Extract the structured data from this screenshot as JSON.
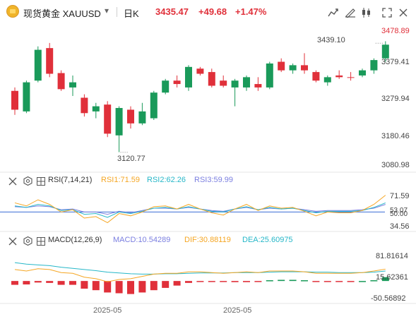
{
  "header": {
    "symbol_name": "现货黄金",
    "symbol_code": "XAUUSD",
    "period": "日K",
    "price": "3435.47",
    "change": "+49.68",
    "change_pct": "+1.47%"
  },
  "toolbar": {
    "icons": [
      "chart-type-icon",
      "drawing-tools-icon",
      "indicator-icon",
      "fullscreen-icon",
      "close-icon"
    ]
  },
  "price_axis": {
    "labels": [
      "3478.89",
      "3379.41",
      "3279.94",
      "3180.46",
      "3080.98"
    ],
    "highlight": "3478.89"
  },
  "annotations": {
    "high": "3439.10",
    "low": "3120.77"
  },
  "rsi": {
    "title": "RSI(7,14,21)",
    "rsi1": "RSI1:71.59",
    "rsi2": "RSI2:62.26",
    "rsi3": "RSI3:59.99",
    "axis": [
      "71.59",
      "53.07",
      "50.00",
      "34.56"
    ],
    "colors": {
      "rsi1": "#f5a623",
      "rsi2": "#26b7c8",
      "rsi3": "#7b7fe0"
    }
  },
  "macd": {
    "title": "MACD(12,26,9)",
    "macd": "MACD:10.54289",
    "dif": "DIF:30.88119",
    "dea": "DEA:25.60975",
    "axis": [
      "81.81614",
      "15.62361",
      "-50.56892"
    ],
    "colors": {
      "macd": "#7b7fe0",
      "dif": "#f5a623",
      "dea": "#26b7c8"
    }
  },
  "x_axis": [
    "2025-05",
    "2025-05"
  ],
  "colors": {
    "up": "#1a9a5a",
    "down": "#e0303a",
    "accent": "#3a6bd6"
  },
  "chart_data": {
    "type": "candlestick",
    "ylim": [
      3080.98,
      3478.89
    ],
    "candles": [
      {
        "o": 3300,
        "h": 3310,
        "l": 3230,
        "c": 3245
      },
      {
        "o": 3240,
        "h": 3330,
        "l": 3235,
        "c": 3325
      },
      {
        "o": 3330,
        "h": 3430,
        "l": 3325,
        "c": 3420
      },
      {
        "o": 3425,
        "h": 3440,
        "l": 3340,
        "c": 3350
      },
      {
        "o": 3352,
        "h": 3360,
        "l": 3300,
        "c": 3305
      },
      {
        "o": 3310,
        "h": 3345,
        "l": 3285,
        "c": 3325
      },
      {
        "o": 3280,
        "h": 3290,
        "l": 3225,
        "c": 3235
      },
      {
        "o": 3240,
        "h": 3265,
        "l": 3220,
        "c": 3255
      },
      {
        "o": 3260,
        "h": 3270,
        "l": 3165,
        "c": 3175
      },
      {
        "o": 3170,
        "h": 3255,
        "l": 3121,
        "c": 3250
      },
      {
        "o": 3245,
        "h": 3255,
        "l": 3190,
        "c": 3205
      },
      {
        "o": 3205,
        "h": 3265,
        "l": 3200,
        "c": 3240
      },
      {
        "o": 3220,
        "h": 3300,
        "l": 3215,
        "c": 3295
      },
      {
        "o": 3295,
        "h": 3335,
        "l": 3290,
        "c": 3330
      },
      {
        "o": 3330,
        "h": 3345,
        "l": 3310,
        "c": 3320
      },
      {
        "o": 3310,
        "h": 3375,
        "l": 3300,
        "c": 3370
      },
      {
        "o": 3365,
        "h": 3370,
        "l": 3345,
        "c": 3350
      },
      {
        "o": 3355,
        "h": 3365,
        "l": 3310,
        "c": 3315
      },
      {
        "o": 3330,
        "h": 3345,
        "l": 3310,
        "c": 3315
      },
      {
        "o": 3310,
        "h": 3335,
        "l": 3255,
        "c": 3330
      },
      {
        "o": 3310,
        "h": 3345,
        "l": 3300,
        "c": 3340
      },
      {
        "o": 3320,
        "h": 3340,
        "l": 3300,
        "c": 3310
      },
      {
        "o": 3310,
        "h": 3385,
        "l": 3305,
        "c": 3380
      },
      {
        "o": 3385,
        "h": 3395,
        "l": 3355,
        "c": 3360
      },
      {
        "o": 3360,
        "h": 3380,
        "l": 3350,
        "c": 3375
      },
      {
        "o": 3375,
        "h": 3410,
        "l": 3350,
        "c": 3360
      },
      {
        "o": 3355,
        "h": 3360,
        "l": 3325,
        "c": 3330
      },
      {
        "o": 3325,
        "h": 3345,
        "l": 3315,
        "c": 3340
      },
      {
        "o": 3345,
        "h": 3360,
        "l": 3335,
        "c": 3340
      },
      {
        "o": 3340,
        "h": 3355,
        "l": 3330,
        "c": 3338
      },
      {
        "o": 3345,
        "h": 3365,
        "l": 3340,
        "c": 3360
      },
      {
        "o": 3360,
        "h": 3395,
        "l": 3350,
        "c": 3390
      },
      {
        "o": 3395,
        "h": 3445,
        "l": 3385,
        "c": 3435
      }
    ],
    "rsi": {
      "ylim": [
        30,
        80
      ],
      "rsi1": [
        62,
        58,
        66,
        60,
        50,
        53,
        42,
        44,
        36,
        48,
        45,
        50,
        57,
        58,
        54,
        60,
        54,
        49,
        46,
        54,
        60,
        52,
        58,
        55,
        56,
        51,
        45,
        50,
        49,
        49,
        52,
        60,
        72
      ],
      "rsi2": [
        58,
        56,
        60,
        58,
        52,
        53,
        47,
        48,
        43,
        50,
        48,
        51,
        55,
        56,
        54,
        57,
        54,
        51,
        50,
        54,
        57,
        53,
        56,
        54,
        55,
        52,
        49,
        51,
        51,
        51,
        52,
        56,
        62
      ],
      "rsi3": [
        57,
        56,
        58,
        57,
        53,
        54,
        50,
        50,
        47,
        51,
        49,
        52,
        55,
        55,
        54,
        56,
        54,
        52,
        51,
        54,
        56,
        53,
        55,
        54,
        55,
        53,
        51,
        52,
        52,
        52,
        53,
        55,
        60
      ]
    },
    "macd": {
      "ylim": [
        -55,
        85
      ],
      "hist": [
        -10,
        -9,
        -4,
        -5,
        -10,
        -10,
        -20,
        -24,
        -30,
        -32,
        -34,
        -30,
        -24,
        -18,
        -12,
        -5,
        -2,
        -1,
        -2,
        -3,
        -3,
        -2,
        2,
        3,
        3,
        2,
        -1,
        -2,
        -1,
        -1,
        0,
        2,
        10
      ],
      "dif": [
        30,
        26,
        32,
        30,
        22,
        20,
        10,
        6,
        -2,
        4,
        6,
        12,
        18,
        20,
        20,
        24,
        24,
        22,
        20,
        22,
        24,
        22,
        26,
        26,
        26,
        24,
        20,
        20,
        20,
        20,
        22,
        26,
        31
      ],
      "dea": [
        48,
        44,
        42,
        40,
        36,
        33,
        30,
        27,
        23,
        21,
        19,
        18,
        18,
        19,
        19,
        20,
        21,
        21,
        21,
        22,
        22,
        22,
        23,
        24,
        24,
        24,
        23,
        23,
        22,
        22,
        22,
        23,
        26
      ]
    }
  }
}
